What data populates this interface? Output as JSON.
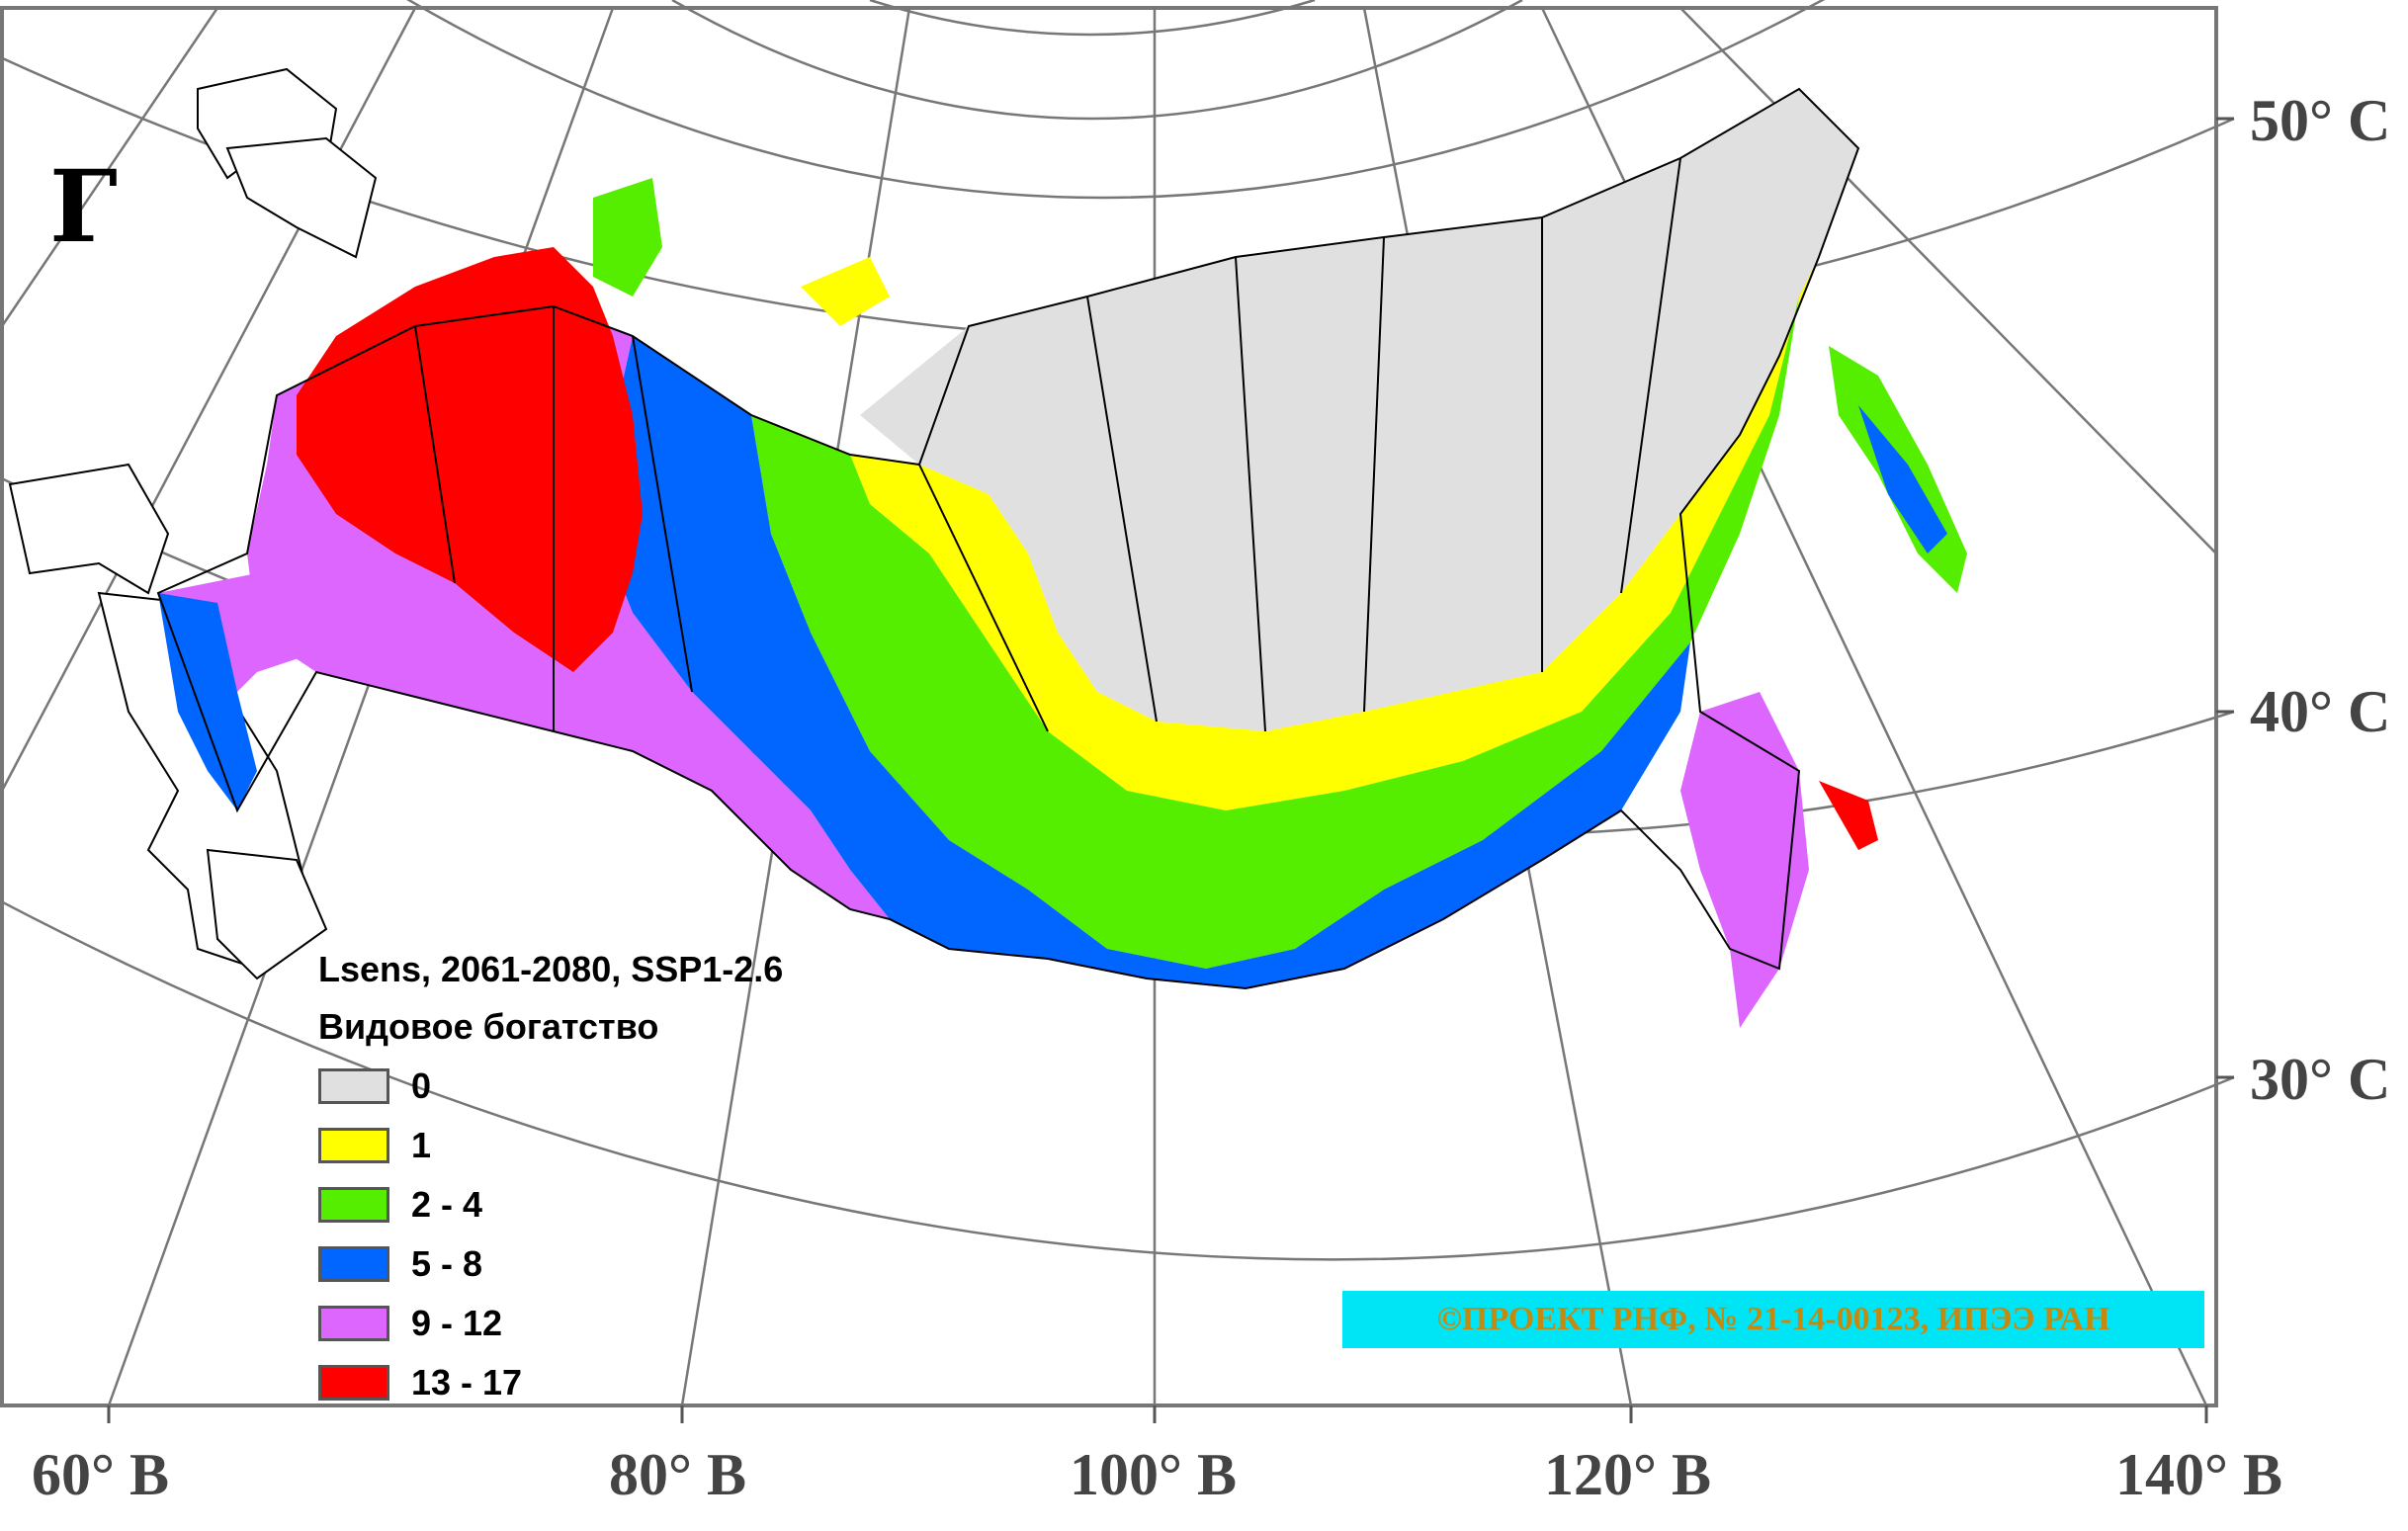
{
  "panel_label": "Г",
  "legend": {
    "title": "Lsens, 2061-2080, SSP1-2.6",
    "subtitle": "Видовое богатство",
    "items": [
      {
        "label": "0",
        "color": "#e0e0e0"
      },
      {
        "label": "1",
        "color": "#ffff00"
      },
      {
        "label": "2 - 4",
        "color": "#55ee00"
      },
      {
        "label": "5 - 8",
        "color": "#0066ff"
      },
      {
        "label": "9 - 12",
        "color": "#dd66ff"
      },
      {
        "label": "13 - 17",
        "color": "#ff0000"
      }
    ]
  },
  "longitude_labels": [
    "60° В",
    "80° В",
    "100° В",
    "120° В",
    "140° В"
  ],
  "latitude_labels": [
    "50° С",
    "40° С",
    "30° С"
  ],
  "credit": "©ПРОЕКТ РНФ, № 21-14-00123, ИПЭЭ РАН"
}
